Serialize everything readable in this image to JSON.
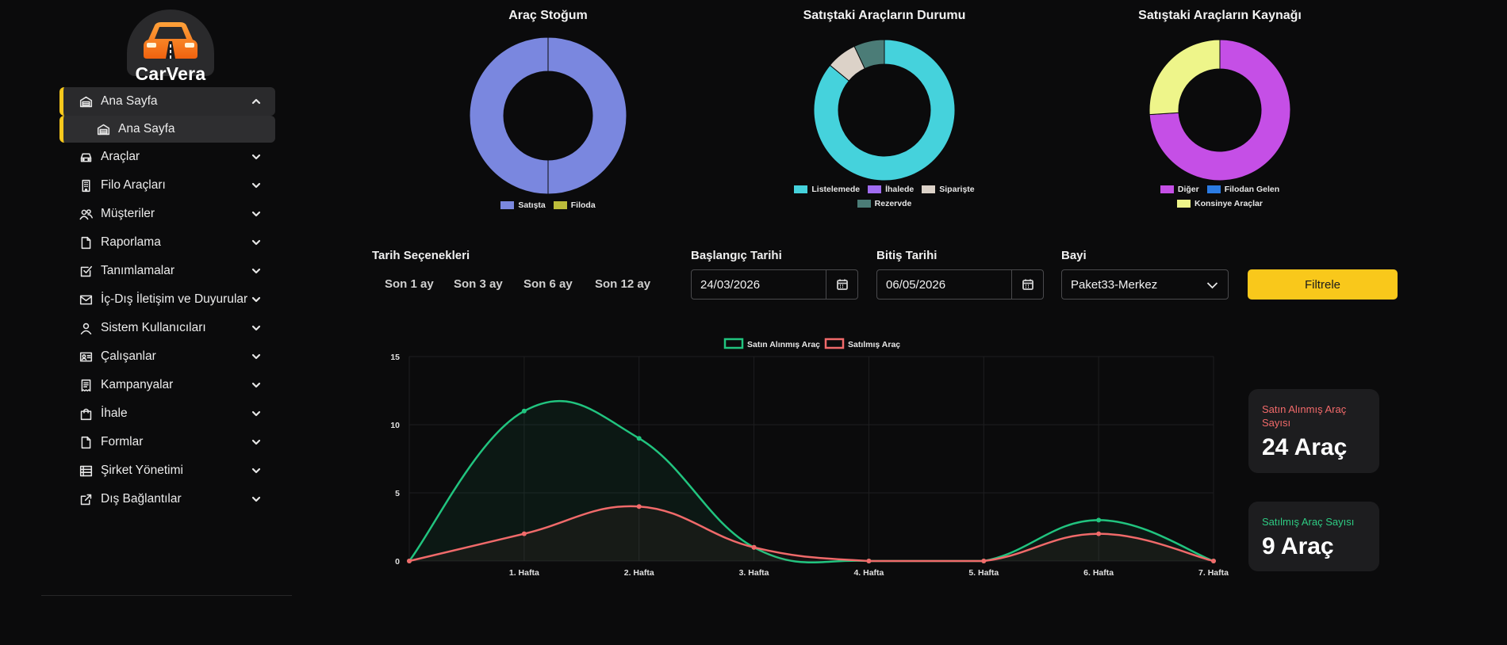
{
  "brand": {
    "name": "CarVera"
  },
  "sidebar": {
    "items": [
      {
        "label": "Ana Sayfa",
        "icon": "garage-icon",
        "state": "expanded"
      },
      {
        "label": "Ana Sayfa",
        "icon": "garage-icon",
        "state": "sub-active"
      },
      {
        "label": "Araçlar",
        "icon": "car-icon"
      },
      {
        "label": "Filo Araçları",
        "icon": "building-icon"
      },
      {
        "label": "Müşteriler",
        "icon": "users-icon"
      },
      {
        "label": "Raporlama",
        "icon": "file-icon"
      },
      {
        "label": "Tanımlamalar",
        "icon": "checkbox-icon"
      },
      {
        "label": "İç-Dış İletişim ve Duyurular",
        "icon": "mail-icon"
      },
      {
        "label": "Sistem Kullanıcıları",
        "icon": "user-icon"
      },
      {
        "label": "Çalışanlar",
        "icon": "id-card-icon"
      },
      {
        "label": "Kampanyalar",
        "icon": "receipt-icon"
      },
      {
        "label": "İhale",
        "icon": "shopping-bag-icon"
      },
      {
        "label": "Formlar",
        "icon": "file-icon"
      },
      {
        "label": "Şirket Yönetimi",
        "icon": "list-icon"
      },
      {
        "label": "Dış Bağlantılar",
        "icon": "external-link-icon"
      }
    ]
  },
  "donuts": {
    "stock": {
      "title": "Araç Stoğum",
      "legend": [
        "Satışta",
        "Filoda"
      ]
    },
    "status": {
      "title": "Satıştaki Araçların Durumu",
      "legend": [
        "Listelemede",
        "İhalede",
        "Siparişte",
        "Rezervde"
      ]
    },
    "source": {
      "title": "Satıştaki Araçların Kaynağı",
      "legend": [
        "Diğer",
        "Filodan Gelen",
        "Konsinye Araçlar"
      ]
    }
  },
  "filters": {
    "date_options_label": "Tarih Seçenekleri",
    "ranges": [
      "Son 1 ay",
      "Son 3 ay",
      "Son 6 ay",
      "Son 12 ay"
    ],
    "start_label": "Başlangıç Tarihi",
    "start_value": "24/03/2026",
    "end_label": "Bitiş Tarihi",
    "end_value": "06/05/2026",
    "dealer_label": "Bayi",
    "dealer_value": "Paket33-Merkez",
    "filter_button": "Filtrele"
  },
  "stats": {
    "bought": {
      "label": "Satın Alınmış Araç Sayısı",
      "value": "24 Araç",
      "color": "#f26a6a"
    },
    "sold": {
      "label": "Satılmış Araç Sayısı",
      "value": "9 Araç",
      "color": "#2ecb83"
    }
  },
  "chart_data": [
    {
      "type": "pie",
      "title": "Araç Stoğum",
      "categories": [
        "Satışta",
        "Filoda"
      ],
      "values": [
        100,
        0
      ],
      "colors": [
        "#7a87df",
        "#bcbc3a"
      ]
    },
    {
      "type": "pie",
      "title": "Satıştaki Araçların Durumu",
      "categories": [
        "Listelemede",
        "İhalede",
        "Siparişte",
        "Rezervde"
      ],
      "values": [
        86,
        0,
        7,
        7
      ],
      "colors": [
        "#45d2dc",
        "#a06cf0",
        "#dcd2c8",
        "#4b7c77"
      ]
    },
    {
      "type": "pie",
      "title": "Satıştaki Araçların Kaynağı",
      "categories": [
        "Diğer",
        "Filodan Gelen",
        "Konsinye Araçlar"
      ],
      "values": [
        74,
        0,
        26
      ],
      "colors": [
        "#c54fe6",
        "#2b7be3",
        "#eef58a"
      ]
    },
    {
      "type": "line",
      "categories": [
        "",
        "1. Hafta",
        "2. Hafta",
        "3. Hafta",
        "4. Hafta",
        "5. Hafta",
        "6. Hafta",
        "7. Hafta"
      ],
      "series": [
        {
          "name": "Satın Alınmış Araç",
          "values": [
            0,
            11,
            9,
            1,
            0,
            0,
            3,
            0
          ],
          "color": "#21c47f"
        },
        {
          "name": "Satılmış Araç",
          "values": [
            0,
            2,
            4,
            1,
            0,
            0,
            2,
            0
          ],
          "color": "#f06a6a"
        }
      ],
      "ylim": [
        0,
        15
      ],
      "yticks": [
        0,
        5,
        10,
        15
      ],
      "grid": true,
      "legend": "top-center"
    }
  ]
}
